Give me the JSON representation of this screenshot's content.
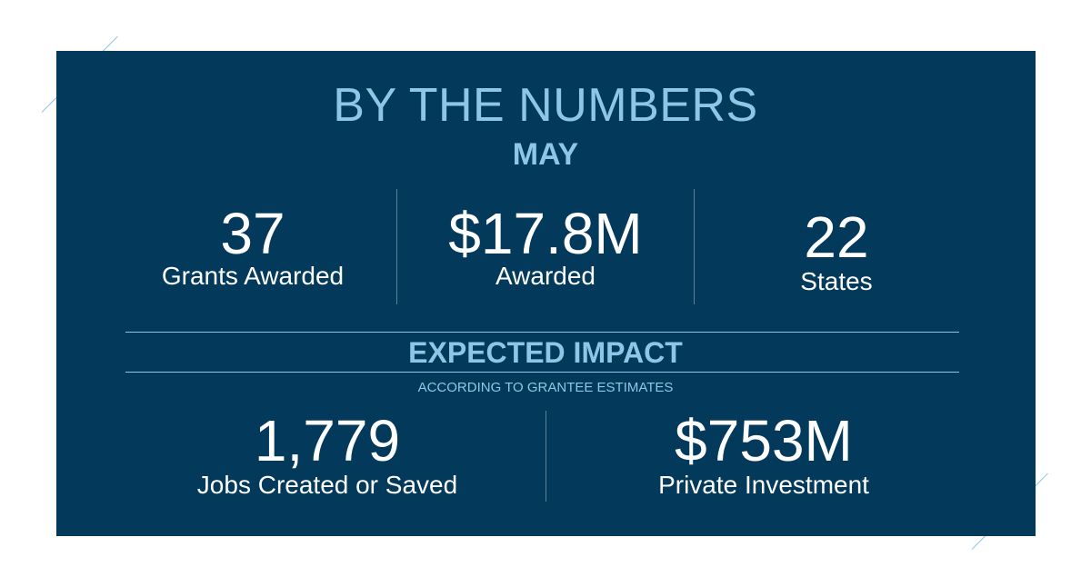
{
  "header": {
    "title": "BY THE NUMBERS",
    "month": "MAY"
  },
  "top_stats": [
    {
      "value": "37",
      "label": "Grants Awarded"
    },
    {
      "value": "$17.8M",
      "label": "Awarded"
    },
    {
      "value": "22",
      "label": "States"
    }
  ],
  "impact": {
    "heading": "EXPECTED IMPACT",
    "note": "ACCORDING TO GRANTEE ESTIMATES",
    "stats": [
      {
        "value": "1,779",
        "label": "Jobs Created or Saved"
      },
      {
        "value": "$753M",
        "label": "Private Investment"
      }
    ]
  },
  "colors": {
    "panel": "#033a5c",
    "accent": "#8ec6e8",
    "text": "#ffffff"
  }
}
